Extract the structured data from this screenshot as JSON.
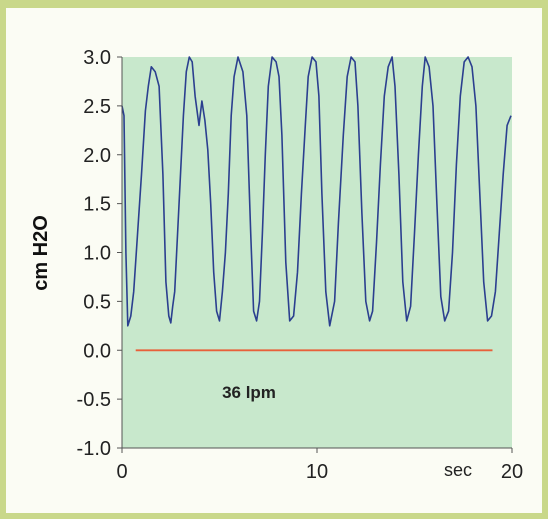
{
  "chart_data": {
    "type": "line",
    "ylabel": "cm H2O",
    "xunit": "sec",
    "annotation": "36 lpm",
    "xlim": [
      0,
      20
    ],
    "ylim": [
      -1.0,
      3.0
    ],
    "xticks": [
      "0",
      "10",
      "20"
    ],
    "xtick_values": [
      0,
      10,
      20
    ],
    "yticks": [
      "3.0",
      "2.5",
      "2.0",
      "1.5",
      "1.0",
      "0.5",
      "0.0",
      "-0.5",
      "-1.0"
    ],
    "ytick_values": [
      3.0,
      2.5,
      2.0,
      1.5,
      1.0,
      0.5,
      0.0,
      -0.5,
      -1.0
    ],
    "background_color": "#c8e8cc",
    "series": [
      {
        "color": "#2b3f8f",
        "x": [
          0.0,
          0.1,
          0.2,
          0.3,
          0.45,
          0.6,
          0.8,
          1.0,
          1.2,
          1.35,
          1.5,
          1.7,
          1.9,
          2.1,
          2.25,
          2.4,
          2.5,
          2.6,
          2.7,
          2.85,
          3.0,
          3.15,
          3.3,
          3.45,
          3.6,
          3.75,
          3.95,
          4.1,
          4.25,
          4.4,
          4.55,
          4.7,
          4.85,
          5.0,
          5.15,
          5.3,
          5.45,
          5.6,
          5.75,
          5.95,
          6.2,
          6.4,
          6.6,
          6.75,
          6.9,
          7.05,
          7.2,
          7.35,
          7.5,
          7.7,
          7.9,
          8.05,
          8.2,
          8.4,
          8.6,
          8.8,
          9.0,
          9.2,
          9.4,
          9.55,
          9.75,
          9.95,
          10.1,
          10.25,
          10.45,
          10.65,
          10.9,
          11.1,
          11.35,
          11.55,
          11.75,
          11.95,
          12.1,
          12.3,
          12.5,
          12.7,
          12.85,
          13.05,
          13.25,
          13.45,
          13.65,
          13.85,
          14.0,
          14.2,
          14.4,
          14.6,
          14.8,
          15.0,
          15.2,
          15.4,
          15.55,
          15.75,
          15.95,
          16.15,
          16.35,
          16.55,
          16.75,
          16.95,
          17.15,
          17.35,
          17.55,
          17.75,
          17.95,
          18.15,
          18.35,
          18.55,
          18.75,
          18.95,
          19.15,
          19.35,
          19.55,
          19.75,
          19.95
        ],
        "y": [
          2.5,
          2.4,
          1.0,
          0.25,
          0.35,
          0.6,
          1.2,
          1.8,
          2.45,
          2.7,
          2.9,
          2.85,
          2.7,
          1.8,
          0.7,
          0.35,
          0.28,
          0.45,
          0.6,
          1.2,
          1.8,
          2.4,
          2.85,
          3.0,
          2.95,
          2.6,
          2.3,
          2.55,
          2.35,
          2.05,
          1.5,
          0.8,
          0.4,
          0.3,
          0.6,
          1.0,
          1.6,
          2.4,
          2.8,
          3.0,
          2.85,
          2.4,
          1.2,
          0.4,
          0.3,
          0.5,
          1.2,
          2.0,
          2.7,
          3.0,
          2.95,
          2.8,
          2.2,
          0.9,
          0.3,
          0.35,
          0.8,
          1.6,
          2.3,
          2.8,
          3.0,
          2.95,
          2.6,
          1.6,
          0.6,
          0.25,
          0.5,
          1.3,
          2.2,
          2.8,
          3.0,
          2.95,
          2.5,
          1.4,
          0.5,
          0.3,
          0.4,
          1.1,
          1.9,
          2.6,
          2.9,
          3.0,
          2.7,
          1.8,
          0.7,
          0.3,
          0.45,
          1.2,
          2.0,
          2.7,
          3.0,
          2.9,
          2.5,
          1.5,
          0.55,
          0.3,
          0.4,
          1.0,
          1.9,
          2.6,
          2.95,
          3.0,
          2.9,
          2.5,
          1.6,
          0.7,
          0.3,
          0.35,
          0.6,
          1.2,
          1.8,
          2.3,
          2.4
        ]
      },
      {
        "color": "#e8603a",
        "x": [
          0.7,
          19.0
        ],
        "y": [
          0.0,
          0.0
        ]
      }
    ]
  }
}
